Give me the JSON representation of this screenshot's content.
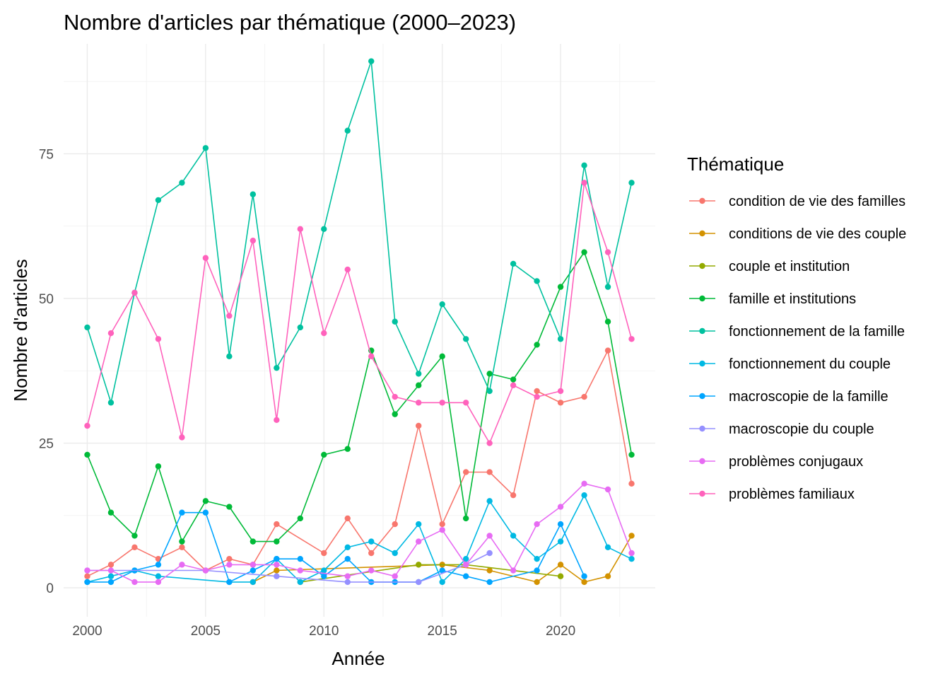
{
  "chart_data": {
    "type": "line",
    "title": "Nombre d'articles par thématique (2000–2023)",
    "xlabel": "Année",
    "ylabel": "Nombre d'articles",
    "legend_title": "Thématique",
    "legend_position": "right",
    "xlim": [
      1999,
      2024
    ],
    "ylim": [
      -5,
      94
    ],
    "x_ticks": [
      2000,
      2005,
      2010,
      2015,
      2020
    ],
    "y_ticks": [
      0,
      25,
      50,
      75
    ],
    "grid": true,
    "series": [
      {
        "name": "condition de vie des familles",
        "color": "#F8766D",
        "points": [
          [
            2000,
            2
          ],
          [
            2001,
            4
          ],
          [
            2002,
            7
          ],
          [
            2003,
            5
          ],
          [
            2004,
            7
          ],
          [
            2005,
            3
          ],
          [
            2006,
            5
          ],
          [
            2007,
            4
          ],
          [
            2008,
            11
          ],
          [
            2010,
            6
          ],
          [
            2011,
            12
          ],
          [
            2012,
            6
          ],
          [
            2013,
            11
          ],
          [
            2014,
            28
          ],
          [
            2015,
            11
          ],
          [
            2016,
            20
          ],
          [
            2017,
            20
          ],
          [
            2018,
            16
          ],
          [
            2019,
            34
          ],
          [
            2020,
            32
          ],
          [
            2021,
            33
          ],
          [
            2022,
            41
          ],
          [
            2023,
            18
          ]
        ]
      },
      {
        "name": "conditions de vie des couple",
        "color": "#D39200",
        "points": [
          [
            2007,
            1
          ],
          [
            2008,
            3
          ],
          [
            2015,
            4
          ],
          [
            2017,
            3
          ],
          [
            2019,
            1
          ],
          [
            2020,
            4
          ],
          [
            2021,
            1
          ],
          [
            2022,
            2
          ],
          [
            2023,
            9
          ]
        ]
      },
      {
        "name": "couple et institution",
        "color": "#93AA00",
        "points": [
          [
            2009,
            1
          ],
          [
            2014,
            4
          ],
          [
            2016,
            4
          ],
          [
            2020,
            2
          ]
        ]
      },
      {
        "name": "famille et institutions",
        "color": "#00BA38",
        "points": [
          [
            2000,
            23
          ],
          [
            2001,
            13
          ],
          [
            2002,
            9
          ],
          [
            2003,
            21
          ],
          [
            2004,
            8
          ],
          [
            2005,
            15
          ],
          [
            2006,
            14
          ],
          [
            2007,
            8
          ],
          [
            2008,
            8
          ],
          [
            2009,
            12
          ],
          [
            2010,
            23
          ],
          [
            2011,
            24
          ],
          [
            2012,
            41
          ],
          [
            2013,
            30
          ],
          [
            2014,
            35
          ],
          [
            2015,
            40
          ],
          [
            2016,
            12
          ],
          [
            2017,
            37
          ],
          [
            2018,
            36
          ],
          [
            2019,
            42
          ],
          [
            2020,
            52
          ],
          [
            2021,
            58
          ],
          [
            2022,
            46
          ],
          [
            2023,
            23
          ]
        ]
      },
      {
        "name": "fonctionnement de la famille",
        "color": "#00C19F",
        "points": [
          [
            2000,
            45
          ],
          [
            2001,
            32
          ],
          [
            2002,
            51
          ],
          [
            2003,
            67
          ],
          [
            2004,
            70
          ],
          [
            2005,
            76
          ],
          [
            2006,
            40
          ],
          [
            2007,
            68
          ],
          [
            2008,
            38
          ],
          [
            2009,
            45
          ],
          [
            2010,
            62
          ],
          [
            2011,
            79
          ],
          [
            2012,
            91
          ],
          [
            2013,
            46
          ],
          [
            2014,
            37
          ],
          [
            2015,
            49
          ],
          [
            2016,
            43
          ],
          [
            2017,
            34
          ],
          [
            2018,
            56
          ],
          [
            2019,
            53
          ],
          [
            2020,
            43
          ],
          [
            2021,
            73
          ],
          [
            2022,
            52
          ],
          [
            2023,
            70
          ]
        ]
      },
      {
        "name": "fonctionnement du couple",
        "color": "#00B9E3",
        "points": [
          [
            2000,
            1
          ],
          [
            2001,
            2
          ],
          [
            2002,
            3
          ],
          [
            2003,
            2
          ],
          [
            2006,
            1
          ],
          [
            2007,
            1
          ],
          [
            2008,
            5
          ],
          [
            2009,
            1
          ],
          [
            2010,
            3
          ],
          [
            2011,
            7
          ],
          [
            2012,
            8
          ],
          [
            2013,
            6
          ],
          [
            2014,
            11
          ],
          [
            2015,
            1
          ],
          [
            2016,
            5
          ],
          [
            2017,
            15
          ],
          [
            2018,
            9
          ],
          [
            2019,
            5
          ],
          [
            2020,
            8
          ],
          [
            2021,
            16
          ],
          [
            2022,
            7
          ],
          [
            2023,
            5
          ]
        ]
      },
      {
        "name": "macroscopie de la famille",
        "color": "#00A5FF",
        "points": [
          [
            2000,
            1
          ],
          [
            2001,
            1
          ],
          [
            2002,
            3
          ],
          [
            2003,
            4
          ],
          [
            2004,
            13
          ],
          [
            2005,
            13
          ],
          [
            2006,
            1
          ],
          [
            2007,
            3
          ],
          [
            2008,
            5
          ],
          [
            2009,
            5
          ],
          [
            2010,
            2
          ],
          [
            2011,
            5
          ],
          [
            2012,
            1
          ],
          [
            2013,
            1
          ],
          [
            2014,
            1
          ],
          [
            2015,
            3
          ],
          [
            2016,
            2
          ],
          [
            2017,
            1
          ],
          [
            2019,
            3
          ],
          [
            2020,
            11
          ],
          [
            2021,
            2
          ]
        ]
      },
      {
        "name": "macroscopie du couple",
        "color": "#9590FF",
        "points": [
          [
            2000,
            3
          ],
          [
            2005,
            3
          ],
          [
            2008,
            2
          ],
          [
            2011,
            1
          ],
          [
            2014,
            1
          ],
          [
            2016,
            4
          ],
          [
            2017,
            6
          ]
        ]
      },
      {
        "name": "problèmes conjugaux",
        "color": "#E76BF3",
        "points": [
          [
            2000,
            3
          ],
          [
            2001,
            3
          ],
          [
            2002,
            1
          ],
          [
            2003,
            1
          ],
          [
            2004,
            4
          ],
          [
            2005,
            3
          ],
          [
            2006,
            4
          ],
          [
            2007,
            4
          ],
          [
            2008,
            4
          ],
          [
            2009,
            3
          ],
          [
            2011,
            2
          ],
          [
            2012,
            3
          ],
          [
            2013,
            2
          ],
          [
            2014,
            8
          ],
          [
            2015,
            10
          ],
          [
            2016,
            4
          ],
          [
            2017,
            9
          ],
          [
            2018,
            3
          ],
          [
            2019,
            11
          ],
          [
            2020,
            14
          ],
          [
            2021,
            18
          ],
          [
            2022,
            17
          ],
          [
            2023,
            6
          ]
        ]
      },
      {
        "name": "problèmes familiaux",
        "color": "#FF62BC",
        "points": [
          [
            2000,
            28
          ],
          [
            2001,
            44
          ],
          [
            2002,
            51
          ],
          [
            2003,
            43
          ],
          [
            2004,
            26
          ],
          [
            2005,
            57
          ],
          [
            2006,
            47
          ],
          [
            2007,
            60
          ],
          [
            2008,
            29
          ],
          [
            2009,
            62
          ],
          [
            2010,
            44
          ],
          [
            2011,
            55
          ],
          [
            2012,
            40
          ],
          [
            2013,
            33
          ],
          [
            2014,
            32
          ],
          [
            2015,
            32
          ],
          [
            2016,
            32
          ],
          [
            2017,
            25
          ],
          [
            2018,
            35
          ],
          [
            2019,
            33
          ],
          [
            2020,
            34
          ],
          [
            2021,
            70
          ],
          [
            2022,
            58
          ],
          [
            2023,
            43
          ]
        ]
      }
    ]
  }
}
